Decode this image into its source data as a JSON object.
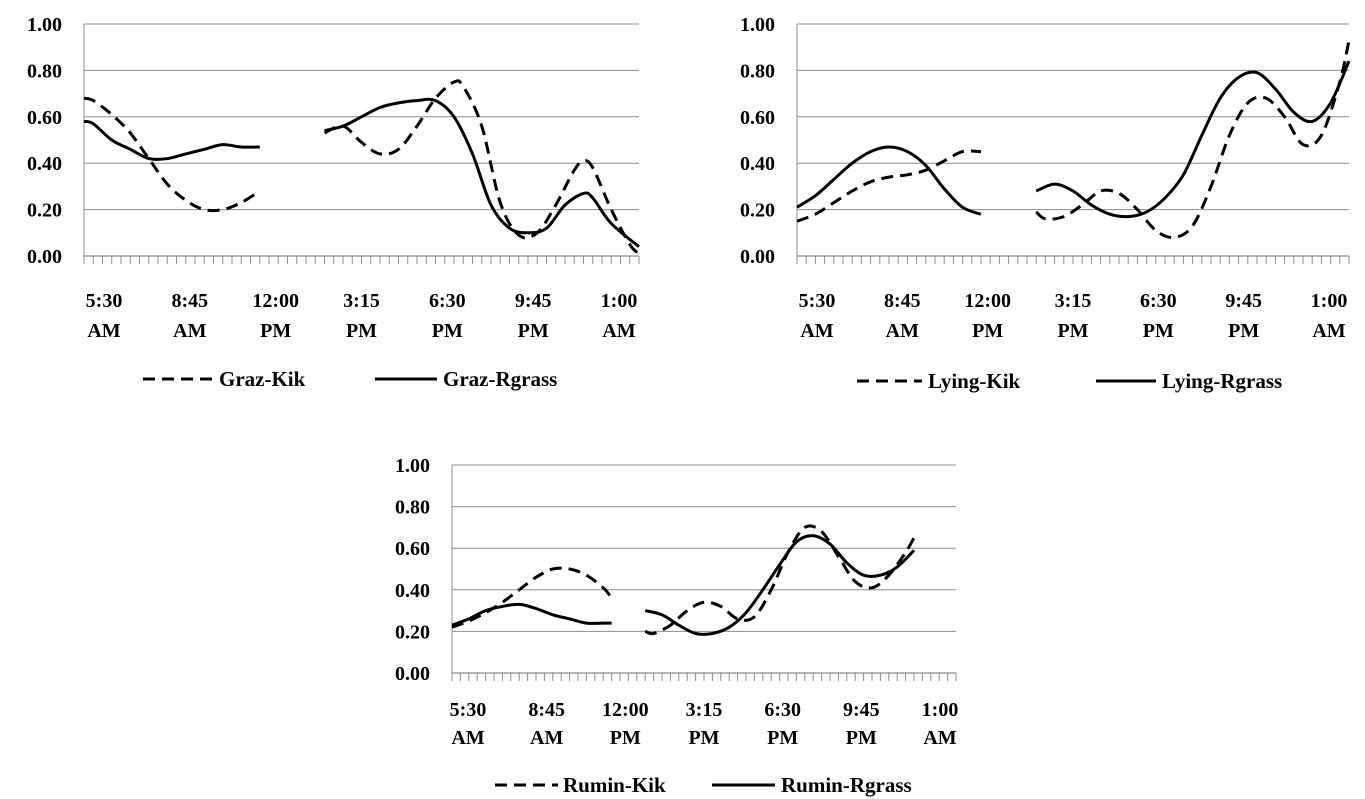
{
  "chart_data": [
    {
      "type": "line",
      "id": "grazing",
      "title": "",
      "xlabel": "",
      "ylabel": "",
      "ylim": [
        0,
        1
      ],
      "yticks": [
        "0.00",
        "0.20",
        "0.40",
        "0.60",
        "0.80",
        "1.00"
      ],
      "grid": "horizontal",
      "legend_position": "bottom",
      "x_tick_labels": [
        [
          "5:30",
          "AM"
        ],
        [
          "8:45",
          "AM"
        ],
        [
          "12:00",
          "PM"
        ],
        [
          "3:15",
          "PM"
        ],
        [
          "6:30",
          "PM"
        ],
        [
          "9:45",
          "PM"
        ],
        [
          "1:00",
          "AM"
        ]
      ],
      "x_range": [
        0,
        60
      ],
      "series": [
        {
          "name": "Graz-Kik",
          "style": "dashed",
          "segments": [
            [
              [
                0,
                0.68
              ],
              [
                1,
                0.67
              ],
              [
                3,
                0.61
              ],
              [
                5,
                0.53
              ],
              [
                7,
                0.42
              ],
              [
                9,
                0.31
              ],
              [
                11,
                0.24
              ],
              [
                13,
                0.2
              ],
              [
                15,
                0.2
              ],
              [
                17,
                0.23
              ],
              [
                19,
                0.28
              ]
            ],
            [
              [
                26,
                0.53
              ],
              [
                28,
                0.56
              ],
              [
                30,
                0.49
              ],
              [
                32,
                0.44
              ],
              [
                34,
                0.46
              ],
              [
                36,
                0.56
              ],
              [
                38,
                0.68
              ],
              [
                40,
                0.75
              ],
              [
                41,
                0.73
              ],
              [
                43,
                0.56
              ],
              [
                45,
                0.23
              ],
              [
                47,
                0.09
              ],
              [
                49,
                0.1
              ],
              [
                51,
                0.22
              ],
              [
                53,
                0.37
              ],
              [
                54,
                0.41
              ],
              [
                55,
                0.38
              ],
              [
                57,
                0.2
              ],
              [
                59,
                0.05
              ],
              [
                60,
                0.01
              ]
            ]
          ]
        },
        {
          "name": "Graz-Rgrass",
          "style": "solid",
          "segments": [
            [
              [
                0,
                0.58
              ],
              [
                1,
                0.57
              ],
              [
                3,
                0.5
              ],
              [
                5,
                0.46
              ],
              [
                7,
                0.42
              ],
              [
                9,
                0.42
              ],
              [
                11,
                0.44
              ],
              [
                13,
                0.46
              ],
              [
                15,
                0.48
              ],
              [
                17,
                0.47
              ],
              [
                19,
                0.47
              ]
            ],
            [
              [
                26,
                0.54
              ],
              [
                28,
                0.56
              ],
              [
                30,
                0.6
              ],
              [
                32,
                0.64
              ],
              [
                34,
                0.66
              ],
              [
                36,
                0.67
              ],
              [
                38,
                0.67
              ],
              [
                40,
                0.6
              ],
              [
                42,
                0.44
              ],
              [
                44,
                0.22
              ],
              [
                46,
                0.12
              ],
              [
                48,
                0.1
              ],
              [
                50,
                0.12
              ],
              [
                52,
                0.22
              ],
              [
                54,
                0.27
              ],
              [
                55,
                0.25
              ],
              [
                57,
                0.14
              ],
              [
                60,
                0.04
              ]
            ]
          ]
        }
      ]
    },
    {
      "type": "line",
      "id": "lying",
      "title": "",
      "xlabel": "",
      "ylabel": "",
      "ylim": [
        0,
        1
      ],
      "yticks": [
        "0.00",
        "0.20",
        "0.40",
        "0.60",
        "0.80",
        "1.00"
      ],
      "grid": "horizontal",
      "legend_position": "bottom",
      "x_tick_labels": [
        [
          "5:30",
          "AM"
        ],
        [
          "8:45",
          "AM"
        ],
        [
          "12:00",
          "PM"
        ],
        [
          "3:15",
          "PM"
        ],
        [
          "6:30",
          "PM"
        ],
        [
          "9:45",
          "PM"
        ],
        [
          "1:00",
          "AM"
        ]
      ],
      "x_range": [
        0,
        60
      ],
      "series": [
        {
          "name": "Lying-Kik",
          "style": "dashed",
          "segments": [
            [
              [
                0,
                0.15
              ],
              [
                2,
                0.18
              ],
              [
                4,
                0.23
              ],
              [
                6,
                0.28
              ],
              [
                8,
                0.32
              ],
              [
                10,
                0.34
              ],
              [
                12,
                0.35
              ],
              [
                14,
                0.37
              ],
              [
                16,
                0.41
              ],
              [
                18,
                0.45
              ],
              [
                20,
                0.45
              ]
            ],
            [
              [
                26,
                0.19
              ],
              [
                27,
                0.16
              ],
              [
                29,
                0.17
              ],
              [
                31,
                0.22
              ],
              [
                33,
                0.28
              ],
              [
                35,
                0.27
              ],
              [
                37,
                0.2
              ],
              [
                39,
                0.11
              ],
              [
                41,
                0.08
              ],
              [
                43,
                0.13
              ],
              [
                45,
                0.3
              ],
              [
                47,
                0.52
              ],
              [
                49,
                0.66
              ],
              [
                51,
                0.68
              ],
              [
                53,
                0.6
              ],
              [
                55,
                0.48
              ],
              [
                57,
                0.52
              ],
              [
                59,
                0.75
              ],
              [
                60,
                0.93
              ]
            ]
          ]
        },
        {
          "name": "Lying-Rgrass",
          "style": "solid",
          "segments": [
            [
              [
                0,
                0.21
              ],
              [
                2,
                0.26
              ],
              [
                4,
                0.33
              ],
              [
                6,
                0.4
              ],
              [
                8,
                0.45
              ],
              [
                10,
                0.47
              ],
              [
                12,
                0.45
              ],
              [
                14,
                0.39
              ],
              [
                16,
                0.29
              ],
              [
                18,
                0.21
              ],
              [
                20,
                0.18
              ]
            ],
            [
              [
                26,
                0.28
              ],
              [
                28,
                0.31
              ],
              [
                30,
                0.28
              ],
              [
                32,
                0.22
              ],
              [
                34,
                0.18
              ],
              [
                36,
                0.17
              ],
              [
                38,
                0.19
              ],
              [
                40,
                0.25
              ],
              [
                42,
                0.35
              ],
              [
                44,
                0.52
              ],
              [
                46,
                0.68
              ],
              [
                48,
                0.77
              ],
              [
                50,
                0.79
              ],
              [
                52,
                0.72
              ],
              [
                54,
                0.62
              ],
              [
                56,
                0.58
              ],
              [
                58,
                0.66
              ],
              [
                60,
                0.84
              ]
            ]
          ]
        }
      ]
    },
    {
      "type": "line",
      "id": "ruminating",
      "title": "",
      "xlabel": "",
      "ylabel": "",
      "ylim": [
        0,
        1
      ],
      "yticks": [
        "0.00",
        "0.20",
        "0.40",
        "0.60",
        "0.80",
        "1.00"
      ],
      "grid": "horizontal",
      "legend_position": "bottom",
      "x_tick_labels": [
        [
          "5:30",
          "AM"
        ],
        [
          "8:45",
          "AM"
        ],
        [
          "12:00",
          "PM"
        ],
        [
          "3:15",
          "PM"
        ],
        [
          "6:30",
          "PM"
        ],
        [
          "9:45",
          "PM"
        ],
        [
          "1:00",
          "AM"
        ]
      ],
      "x_range": [
        0,
        60
      ],
      "series": [
        {
          "name": "Rumin-Kik",
          "style": "dashed",
          "segments": [
            [
              [
                0,
                0.22
              ],
              [
                2,
                0.25
              ],
              [
                4,
                0.29
              ],
              [
                6,
                0.34
              ],
              [
                8,
                0.4
              ],
              [
                10,
                0.46
              ],
              [
                12,
                0.5
              ],
              [
                14,
                0.5
              ],
              [
                16,
                0.47
              ],
              [
                18,
                0.41
              ],
              [
                19,
                0.36
              ]
            ],
            [
              [
                23,
                0.2
              ],
              [
                24,
                0.19
              ],
              [
                26,
                0.23
              ],
              [
                28,
                0.3
              ],
              [
                30,
                0.34
              ],
              [
                32,
                0.32
              ],
              [
                34,
                0.26
              ],
              [
                36,
                0.27
              ],
              [
                38,
                0.4
              ],
              [
                40,
                0.58
              ],
              [
                42,
                0.7
              ],
              [
                44,
                0.68
              ],
              [
                46,
                0.56
              ],
              [
                48,
                0.44
              ],
              [
                50,
                0.41
              ],
              [
                52,
                0.47
              ],
              [
                54,
                0.58
              ],
              [
                55,
                0.65
              ]
            ]
          ]
        },
        {
          "name": "Rumin-Rgrass",
          "style": "solid",
          "segments": [
            [
              [
                0,
                0.23
              ],
              [
                2,
                0.26
              ],
              [
                4,
                0.3
              ],
              [
                6,
                0.32
              ],
              [
                8,
                0.33
              ],
              [
                10,
                0.31
              ],
              [
                12,
                0.28
              ],
              [
                14,
                0.26
              ],
              [
                16,
                0.24
              ],
              [
                18,
                0.24
              ],
              [
                19,
                0.24
              ]
            ],
            [
              [
                23,
                0.3
              ],
              [
                25,
                0.28
              ],
              [
                27,
                0.23
              ],
              [
                29,
                0.19
              ],
              [
                31,
                0.19
              ],
              [
                33,
                0.22
              ],
              [
                35,
                0.29
              ],
              [
                37,
                0.4
              ],
              [
                39,
                0.52
              ],
              [
                41,
                0.63
              ],
              [
                43,
                0.66
              ],
              [
                45,
                0.62
              ],
              [
                47,
                0.53
              ],
              [
                49,
                0.47
              ],
              [
                51,
                0.47
              ],
              [
                53,
                0.51
              ],
              [
                55,
                0.59
              ]
            ]
          ]
        }
      ]
    }
  ]
}
